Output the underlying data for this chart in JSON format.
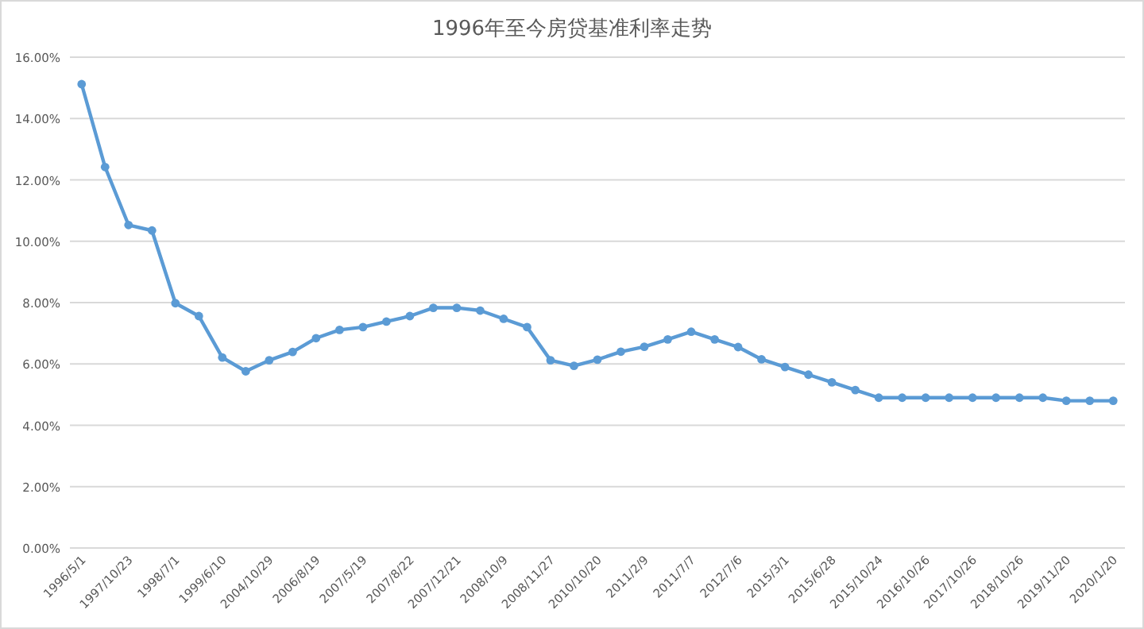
{
  "chart_data": {
    "type": "line",
    "title": "1996年至今房贷基准利率走势",
    "categories": [
      "1996/5/1",
      null,
      "1997/10/23",
      null,
      "1998/7/1",
      null,
      "1999/6/10",
      null,
      "2004/10/29",
      null,
      "2006/8/19",
      null,
      "2007/5/19",
      null,
      "2007/8/22",
      null,
      "2007/12/21",
      null,
      "2008/10/9",
      null,
      "2008/11/27",
      null,
      "2010/10/20",
      null,
      "2011/2/9",
      null,
      "2011/7/7",
      null,
      "2012/7/6",
      null,
      "2015/3/1",
      null,
      "2015/6/28",
      null,
      "2015/10/24",
      null,
      "2016/10/26",
      null,
      "2017/10/26",
      null,
      "2018/10/26",
      null,
      "2019/11/20",
      null,
      "2020/1/20"
    ],
    "series": [
      {
        "color": "#5b9bd5",
        "values": [
          15.12,
          12.42,
          10.53,
          10.35,
          7.98,
          7.56,
          6.21,
          5.76,
          6.12,
          6.39,
          6.84,
          7.11,
          7.2,
          7.38,
          7.56,
          7.83,
          7.83,
          7.74,
          7.47,
          7.2,
          6.12,
          5.94,
          6.14,
          6.4,
          6.56,
          6.8,
          7.05,
          6.8,
          6.55,
          6.15,
          5.9,
          5.65,
          5.4,
          5.15,
          4.9,
          4.9,
          4.9,
          4.9,
          4.9,
          4.9,
          4.9,
          4.9,
          4.8,
          4.8,
          4.8
        ]
      }
    ],
    "ylim": [
      0,
      16
    ],
    "yticks": [
      {
        "value": 0,
        "label": "0.00%"
      },
      {
        "value": 2,
        "label": "2.00%"
      },
      {
        "value": 4,
        "label": "4.00%"
      },
      {
        "value": 6,
        "label": "6.00%"
      },
      {
        "value": 8,
        "label": "8.00%"
      },
      {
        "value": 10,
        "label": "10.00%"
      },
      {
        "value": 12,
        "label": "12.00%"
      },
      {
        "value": 14,
        "label": "14.00%"
      },
      {
        "value": 16,
        "label": "16.00%"
      }
    ],
    "grid": "y",
    "marker": "circle",
    "line_style": "solid"
  }
}
